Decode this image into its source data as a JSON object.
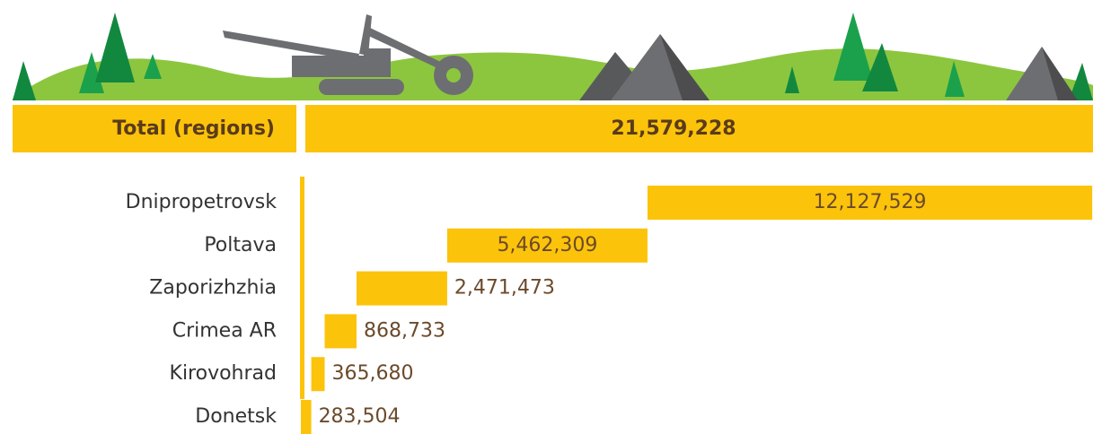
{
  "chart_data": {
    "type": "waterfall",
    "total_label": "Total (regions)",
    "total_value": "21,579,228",
    "categories": [
      "Dnipropetrovsk",
      "Poltava",
      "Zaporizhzhia",
      "Crimea AR",
      "Kirovohrad",
      "Donetsk"
    ],
    "values": [
      12127529,
      5462309,
      2471473,
      868733,
      365680,
      283504
    ],
    "value_labels": [
      "12,127,529",
      "5,462,309",
      "2,471,473",
      "868,733",
      "365,680",
      "283,504"
    ],
    "color": "#fcc30b",
    "xlim": [
      0,
      21600000
    ]
  }
}
